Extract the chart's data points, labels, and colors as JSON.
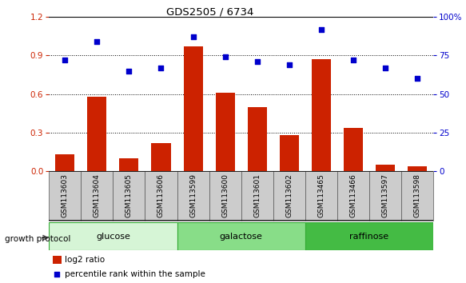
{
  "title": "GDS2505 / 6734",
  "samples": [
    "GSM113603",
    "GSM113604",
    "GSM113605",
    "GSM113606",
    "GSM113599",
    "GSM113600",
    "GSM113601",
    "GSM113602",
    "GSM113465",
    "GSM113466",
    "GSM113597",
    "GSM113598"
  ],
  "log2_ratio": [
    0.13,
    0.58,
    0.1,
    0.22,
    0.97,
    0.61,
    0.5,
    0.28,
    0.87,
    0.34,
    0.05,
    0.04
  ],
  "percentile_rank": [
    72,
    84,
    65,
    67,
    87,
    74,
    71,
    69,
    92,
    72,
    67,
    60
  ],
  "bar_color": "#cc2200",
  "dot_color": "#0000cc",
  "groups": [
    {
      "label": "glucose",
      "start": 0,
      "end": 4,
      "color": "#d6f5d6"
    },
    {
      "label": "galactose",
      "start": 4,
      "end": 8,
      "color": "#88dd88"
    },
    {
      "label": "raffinose",
      "start": 8,
      "end": 12,
      "color": "#44bb44"
    }
  ],
  "ylim_left": [
    0,
    1.2
  ],
  "ylim_right": [
    0,
    100
  ],
  "yticks_left": [
    0,
    0.3,
    0.6,
    0.9,
    1.2
  ],
  "yticks_right": [
    0,
    25,
    50,
    75,
    100
  ],
  "tick_area_color": "#cccccc",
  "growth_protocol_label": "growth protocol",
  "legend_bar_label": "log2 ratio",
  "legend_dot_label": "percentile rank within the sample"
}
